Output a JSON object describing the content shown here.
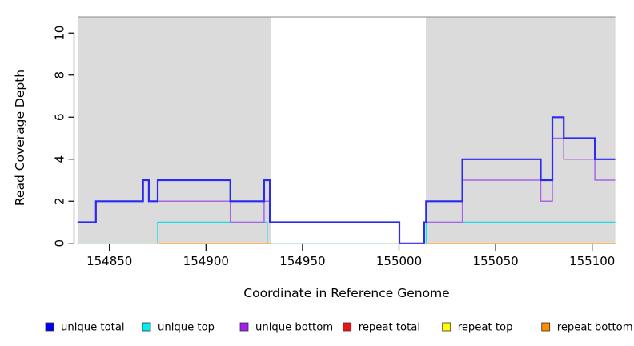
{
  "chart_data": {
    "type": "line",
    "subtype": "step-after",
    "title": "",
    "xlabel": "Coordinate in Reference Genome",
    "ylabel": "Read Coverage Depth",
    "x_ticks": [
      154850,
      154900,
      154950,
      155000,
      155050,
      155100
    ],
    "y_ticks": [
      0,
      2,
      4,
      6,
      8,
      10
    ],
    "xlim": [
      154833.5,
      155112
    ],
    "ylim": [
      0,
      10.77
    ],
    "grid": false,
    "legend_position": "bottom",
    "shaded_regions": [
      {
        "name": "repeat-region-left",
        "from": 154833.5,
        "to": 154933.8,
        "color": "#dbdbdb"
      },
      {
        "name": "repeat-region-right",
        "from": 155013.9,
        "to": 155112.0,
        "color": "#dbdbdb"
      }
    ],
    "series": [
      {
        "name": "unique top",
        "color": "#17dde8",
        "width": 1.4,
        "segments": [
          [
            [
              154833.5,
              0
            ],
            [
              154875,
              1
            ],
            [
              154931.7,
              0
            ],
            [
              155014,
              1
            ],
            [
              155112,
              1
            ]
          ]
        ]
      },
      {
        "name": "zero baseline",
        "color": "#a5cfa5",
        "width": 1.4,
        "segments": [
          [
            [
              154833.5,
              0
            ],
            [
              155112,
              0
            ]
          ]
        ]
      },
      {
        "name": "repeat total",
        "color": "#dd2222",
        "width": 1.4,
        "segments": [
          [
            [
              154875,
              0
            ],
            [
              154933.8,
              0
            ]
          ],
          [
            [
              155013.9,
              0
            ],
            [
              155112,
              0
            ]
          ]
        ]
      },
      {
        "name": "repeat top",
        "color": "#f2e720",
        "width": 1.4,
        "segments": [
          [
            [
              154875,
              0
            ],
            [
              154933.8,
              0
            ]
          ],
          [
            [
              155013.9,
              0
            ],
            [
              155112,
              0
            ]
          ]
        ]
      },
      {
        "name": "repeat bottom",
        "color": "#ff8c00",
        "width": 1.6,
        "segments": [
          [
            [
              154875,
              0
            ],
            [
              154933.8,
              0
            ]
          ],
          [
            [
              155013.9,
              0
            ],
            [
              155112,
              0
            ]
          ]
        ]
      },
      {
        "name": "unique bottom",
        "color": "#ab63e8",
        "width": 1.5,
        "segments": [
          [
            [
              154833.5,
              1
            ],
            [
              154843,
              2
            ],
            [
              154867.4,
              3
            ],
            [
              154870.4,
              2
            ],
            [
              154912.6,
              1
            ],
            [
              154930.1,
              2
            ],
            [
              154933.1,
              1
            ],
            [
              155000.2,
              0
            ],
            [
              155013,
              1
            ],
            [
              155032.8,
              3
            ],
            [
              155073.4,
              2
            ],
            [
              155079.4,
              5
            ],
            [
              155085.3,
              4
            ],
            [
              155101.4,
              3
            ],
            [
              155112,
              3
            ]
          ]
        ]
      },
      {
        "name": "unique total",
        "color": "#2a2af2",
        "width": 2.2,
        "segments": [
          [
            [
              154833.5,
              1
            ],
            [
              154843,
              2
            ],
            [
              154867.4,
              3
            ],
            [
              154870.4,
              2
            ],
            [
              154875,
              3
            ],
            [
              154912.6,
              2
            ],
            [
              154930.1,
              3
            ],
            [
              154933.1,
              1
            ],
            [
              155000.2,
              0
            ],
            [
              155013,
              1
            ],
            [
              155014,
              2
            ],
            [
              155032.8,
              4
            ],
            [
              155073.4,
              3
            ],
            [
              155079.4,
              6
            ],
            [
              155085.3,
              5
            ],
            [
              155101.4,
              4
            ],
            [
              155112,
              4
            ]
          ]
        ]
      }
    ],
    "legend": [
      {
        "label": "unique total",
        "color": "#0000ee"
      },
      {
        "label": "unique top",
        "color": "#00eeee"
      },
      {
        "label": "unique bottom",
        "color": "#a020f0"
      },
      {
        "label": "repeat total",
        "color": "#ee1111"
      },
      {
        "label": "repeat top",
        "color": "#ffff00"
      },
      {
        "label": "repeat bottom",
        "color": "#ff8c00"
      }
    ]
  }
}
